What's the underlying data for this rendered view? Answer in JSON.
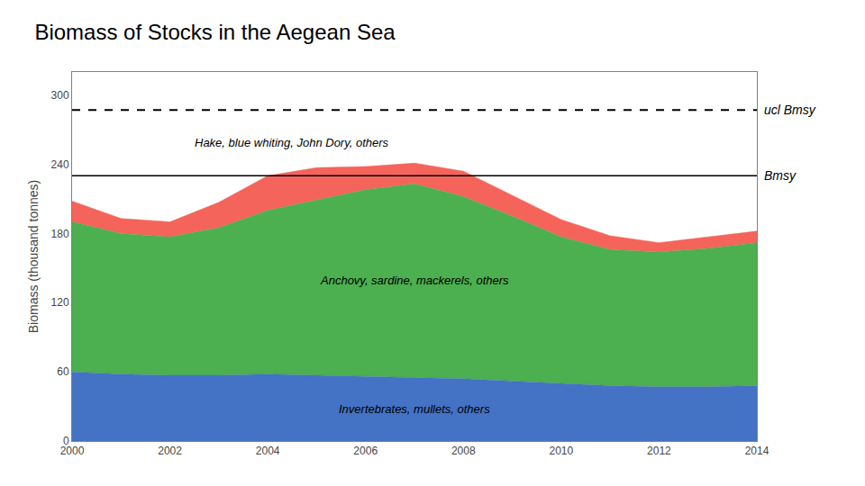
{
  "chart_data": {
    "type": "area",
    "stacked": true,
    "title": "Biomass of Stocks in the Aegean Sea",
    "ylabel": "Biomass (thousand tonnes)",
    "x": [
      2000,
      2001,
      2002,
      2003,
      2004,
      2005,
      2006,
      2007,
      2008,
      2009,
      2010,
      2011,
      2012,
      2013,
      2014
    ],
    "series": [
      {
        "name": "Invertebrates, mullets, others",
        "color": "#4472C4",
        "values": [
          60,
          58,
          57,
          57,
          58,
          57,
          56,
          55,
          54,
          52,
          50,
          48,
          47,
          47,
          48
        ]
      },
      {
        "name": "Anchovy, sardine, mackerels, others",
        "color": "#4CAF50",
        "values": [
          130,
          122,
          120,
          128,
          142,
          152,
          162,
          168,
          158,
          143,
          127,
          118,
          117,
          120,
          124
        ]
      },
      {
        "name": "Hake, blue whiting, John Dory, others",
        "color": "#F4645A",
        "values": [
          18,
          13,
          13,
          22,
          30,
          28,
          20,
          18,
          22,
          18,
          15,
          12,
          8,
          10,
          10
        ]
      }
    ],
    "reference_lines": [
      {
        "value": 230,
        "label": "Bmsy",
        "line_style": "solid",
        "color": "#000000"
      },
      {
        "value": 287,
        "label": "ucl Bmsy",
        "line_style": "dashed",
        "color": "#000000"
      }
    ],
    "xlim": [
      2000,
      2014
    ],
    "xticks": [
      2000,
      2002,
      2004,
      2006,
      2008,
      2010,
      2012,
      2014
    ],
    "ylim": [
      0,
      320
    ],
    "yticks": [
      0,
      60,
      120,
      180,
      240,
      300
    ],
    "grid": false
  }
}
